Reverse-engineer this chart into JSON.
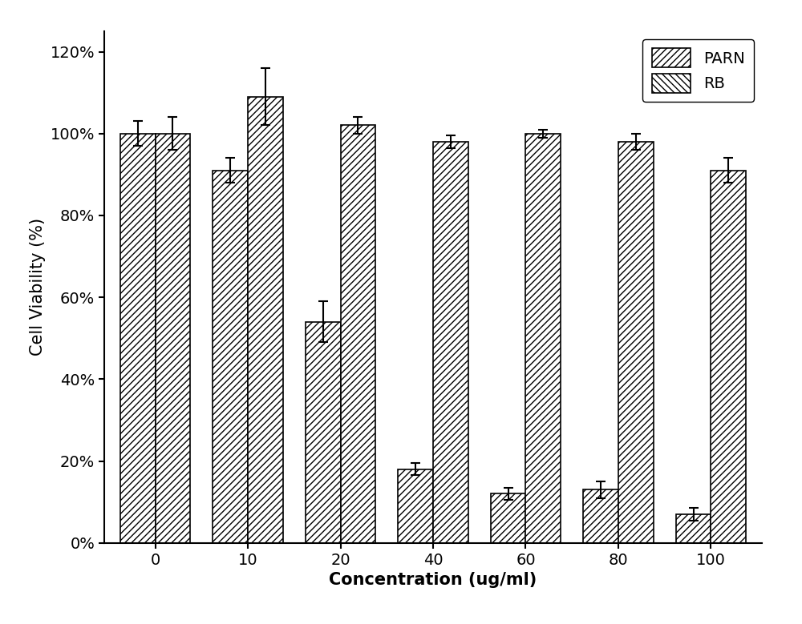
{
  "categories": [
    0,
    10,
    20,
    40,
    60,
    80,
    100
  ],
  "PARN_values": [
    100,
    91,
    54,
    18,
    12,
    13,
    7
  ],
  "RB_values": [
    100,
    109,
    102,
    98,
    100,
    98,
    91
  ],
  "PARN_errors": [
    3,
    3,
    5,
    1.5,
    1.5,
    2,
    1.5
  ],
  "RB_errors": [
    4,
    7,
    2,
    1.5,
    1,
    2,
    3
  ],
  "xlabel": "Concentration (ug/ml)",
  "ylabel": "Cell Viability (%)",
  "ylim": [
    0,
    125
  ],
  "yticks": [
    0,
    20,
    40,
    60,
    80,
    100,
    120
  ],
  "ytick_labels": [
    "0%",
    "20%",
    "40%",
    "60%",
    "80%",
    "100%",
    "120%"
  ],
  "legend_labels": [
    "PARN",
    "RB"
  ],
  "bar_width": 0.38,
  "hatch_PARN": "////",
  "hatch_RB": "////",
  "bar_color": "white",
  "edge_color": "black",
  "background_color": "white",
  "label_fontsize": 15,
  "tick_fontsize": 14,
  "legend_fontsize": 14
}
